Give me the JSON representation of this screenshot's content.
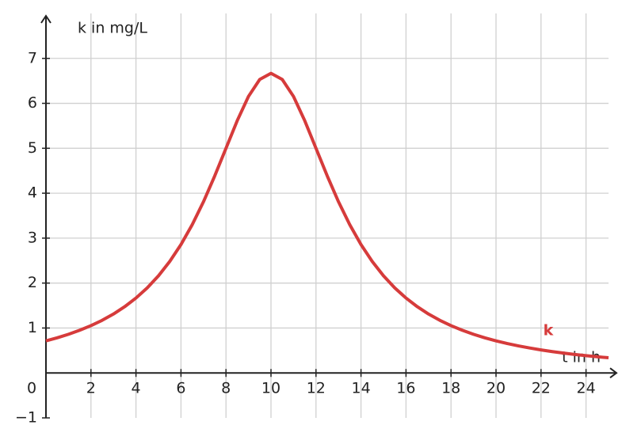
{
  "chart_data": {
    "type": "line",
    "x_label": "t in h",
    "y_label": "k in mg/L",
    "x": [
      0,
      0.5,
      1,
      1.5,
      2,
      2.5,
      3,
      3.5,
      4,
      4.5,
      5,
      5.5,
      6,
      6.5,
      7,
      7.5,
      8,
      8.5,
      9,
      9.5,
      10,
      10.5,
      11,
      11.5,
      12,
      12.5,
      13,
      13.5,
      14,
      14.5,
      15,
      15.5,
      16,
      16.5,
      17,
      17.5,
      18,
      18.5,
      19,
      19.5,
      20,
      20.5,
      21,
      21.5,
      22,
      22.5,
      23,
      23.5,
      24,
      24.5,
      25
    ],
    "series": [
      {
        "name": "k",
        "color": "#d63b3b",
        "values": [
          0.714,
          0.782,
          0.86,
          0.95,
          1.053,
          1.172,
          1.311,
          1.475,
          1.667,
          1.893,
          2.162,
          2.481,
          2.857,
          3.299,
          3.81,
          4.384,
          5,
          5.614,
          6.154,
          6.531,
          6.667,
          6.531,
          6.154,
          5.614,
          5,
          4.384,
          3.81,
          3.299,
          2.857,
          2.481,
          2.162,
          1.893,
          1.667,
          1.475,
          1.311,
          1.172,
          1.053,
          0.95,
          0.86,
          0.782,
          0.714,
          0.654,
          0.602,
          0.555,
          0.513,
          0.475,
          0.442,
          0.412,
          0.385,
          0.36,
          0.338
        ]
      }
    ],
    "xlim": [
      0,
      25
    ],
    "ylim": [
      -1,
      8
    ],
    "xticks": [
      0,
      2,
      4,
      6,
      8,
      10,
      12,
      14,
      16,
      18,
      20,
      22,
      24
    ],
    "yticks": [
      {
        "value": -1,
        "label": "−1"
      },
      1,
      2,
      3,
      4,
      5,
      6,
      7
    ],
    "grid": true
  }
}
